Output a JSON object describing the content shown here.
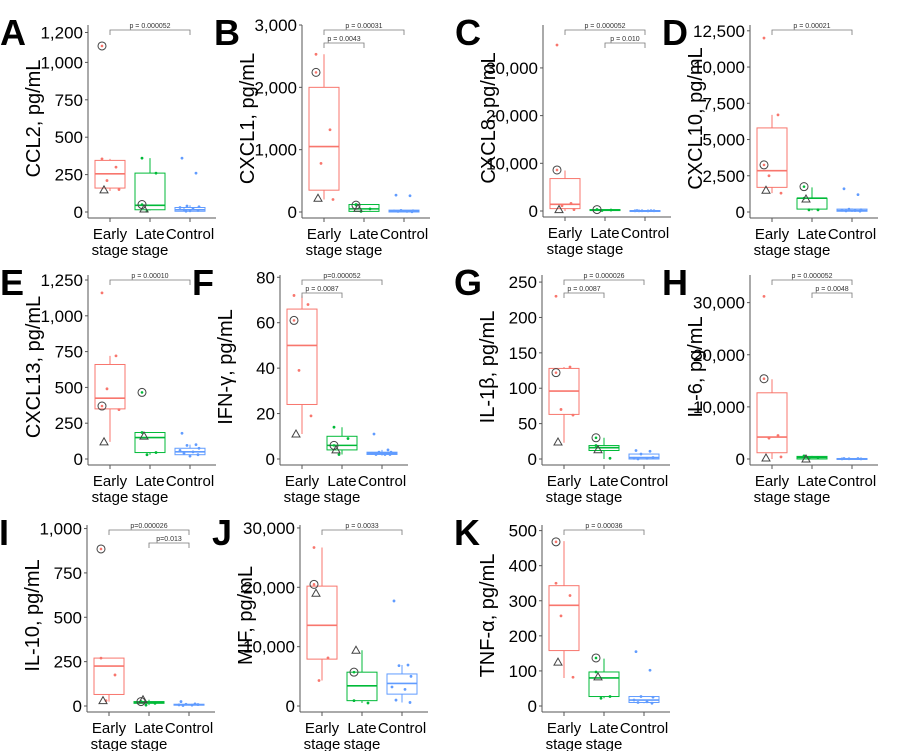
{
  "colors": {
    "early": "#f8766d",
    "late": "#00ba38",
    "control": "#619cff",
    "axis": "#555555",
    "bracket": "#777777"
  },
  "categories": [
    [
      "Early",
      "stage"
    ],
    [
      "Late",
      "stage"
    ],
    [
      "Control",
      ""
    ]
  ],
  "chart_data": [
    {
      "type": "box",
      "panel": "A",
      "ylabel": "CCL2, pg/mL",
      "ylim": [
        0,
        1250
      ],
      "ticks": [
        0,
        250,
        500,
        750,
        1000,
        1200
      ],
      "tick_labels": [
        "0",
        "250",
        "500",
        "750",
        "1,000",
        "1,200"
      ],
      "groups": [
        {
          "q1": 160,
          "median": 255,
          "q3": 345,
          "lo": 140,
          "hi": 355,
          "points": [
            355,
            300,
            210,
            150
          ],
          "circle": 1110,
          "triangle": 148
        },
        {
          "q1": 15,
          "median": 45,
          "q3": 260,
          "lo": 10,
          "hi": 360,
          "points": [
            360,
            260,
            5
          ],
          "circle": 50,
          "triangle": 20
        },
        {
          "q1": 5,
          "median": 15,
          "q3": 30,
          "lo": 0,
          "hi": 45,
          "points": [
            360,
            260,
            40,
            35,
            30,
            20,
            15,
            10,
            8,
            5
          ]
        }
      ],
      "pvalues": [
        {
          "from": 0,
          "to": 2,
          "label": "p = 0.000052"
        }
      ]
    },
    {
      "type": "box",
      "panel": "B",
      "ylabel": "CXCL1, pg/mL",
      "ylim": [
        0,
        3000
      ],
      "ticks": [
        0,
        1000,
        2000,
        3000
      ],
      "tick_labels": [
        "0",
        "1,000",
        "2,000",
        "3,000"
      ],
      "groups": [
        {
          "q1": 350,
          "median": 1050,
          "q3": 2000,
          "lo": 200,
          "hi": 2530,
          "points": [
            2530,
            1320,
            780,
            200
          ],
          "circle": 2240,
          "triangle": 220
        },
        {
          "q1": 10,
          "median": 50,
          "q3": 120,
          "lo": 0,
          "hi": 120,
          "points": [
            120,
            50,
            10
          ],
          "circle": 110,
          "triangle": 60
        },
        {
          "q1": 0,
          "median": 15,
          "q3": 30,
          "lo": 0,
          "hi": 30,
          "points": [
            270,
            260,
            25,
            20,
            15,
            10,
            10,
            5
          ]
        }
      ],
      "pvalues": [
        {
          "from": 0,
          "to": 2,
          "label": "p = 0.00031"
        },
        {
          "from": 0,
          "to": 1,
          "label": "p = 0.0043"
        }
      ]
    },
    {
      "type": "box",
      "panel": "C",
      "ylabel": "CXCL8, pg/mL",
      "ylim": [
        0,
        39000
      ],
      "ticks": [
        0,
        10000,
        20000,
        30000
      ],
      "tick_labels": [
        "0",
        "10,000",
        "20,000",
        "30,000"
      ],
      "groups": [
        {
          "q1": 500,
          "median": 1400,
          "q3": 6800,
          "lo": 0,
          "hi": 8500,
          "points": [
            34800,
            1600,
            1100,
            300
          ],
          "circle": 8600,
          "triangle": 300
        },
        {
          "q1": 100,
          "median": 200,
          "q3": 300,
          "lo": 50,
          "hi": 350,
          "points": [
            300,
            200,
            100
          ],
          "circle": 300
        },
        {
          "q1": 0,
          "median": 50,
          "q3": 100,
          "lo": 0,
          "hi": 150,
          "points": [
            100,
            80,
            60,
            50,
            40,
            30,
            20
          ]
        }
      ],
      "pvalues": [
        {
          "from": 0,
          "to": 2,
          "label": "p = 0.000052"
        },
        {
          "from": 1,
          "to": 2,
          "label": "p = 0.010"
        }
      ]
    },
    {
      "type": "box",
      "panel": "D",
      "ylabel": "CXCL10, pg/mL",
      "ylim": [
        0,
        12900
      ],
      "ticks": [
        0,
        2500,
        5000,
        7500,
        10000,
        12500
      ],
      "tick_labels": [
        "0",
        "2,500",
        "5,000",
        "7,500",
        "10,000",
        "12,500"
      ],
      "groups": [
        {
          "q1": 1700,
          "median": 2850,
          "q3": 5800,
          "lo": 1300,
          "hi": 6700,
          "points": [
            12000,
            6700,
            2500,
            1300
          ],
          "circle": 3250,
          "triangle": 1500
        },
        {
          "q1": 200,
          "median": 950,
          "q3": 950,
          "lo": 100,
          "hi": 1700,
          "points": [
            950,
            150,
            150
          ],
          "circle": 1750,
          "triangle": 900
        },
        {
          "q1": 50,
          "median": 100,
          "q3": 200,
          "lo": 0,
          "hi": 250,
          "points": [
            1600,
            1200,
            200,
            150,
            120,
            100,
            80,
            60
          ]
        }
      ],
      "pvalues": [
        {
          "from": 0,
          "to": 2,
          "label": "p = 0.00021"
        }
      ]
    },
    {
      "type": "box",
      "panel": "E",
      "ylabel": "CXCL13, pg/mL",
      "ylim": [
        0,
        1285
      ],
      "ticks": [
        0,
        250,
        500,
        750,
        1000,
        1250
      ],
      "tick_labels": [
        "0",
        "250",
        "500",
        "750",
        "1,000",
        "1,250"
      ],
      "groups": [
        {
          "q1": 350,
          "median": 425,
          "q3": 660,
          "lo": 120,
          "hi": 720,
          "points": [
            1160,
            720,
            490,
            345
          ],
          "circle": 370,
          "triangle": 120
        },
        {
          "q1": 45,
          "median": 150,
          "q3": 185,
          "lo": 30,
          "hi": 185,
          "points": [
            185,
            45,
            30
          ],
          "circle": 465,
          "triangle": 160
        },
        {
          "q1": 30,
          "median": 50,
          "q3": 75,
          "lo": 15,
          "hi": 100,
          "points": [
            180,
            100,
            95,
            75,
            60,
            50,
            40,
            30,
            20
          ]
        }
      ],
      "pvalues": [
        {
          "from": 0,
          "to": 2,
          "label": "p = 0.00010"
        }
      ]
    },
    {
      "type": "box",
      "panel": "F",
      "ylabel": "IFN-γ, pg/mL",
      "ylim": [
        0,
        81
      ],
      "ticks": [
        0,
        20,
        40,
        60,
        80
      ],
      "tick_labels": [
        "0",
        "20",
        "40",
        "60",
        "80"
      ],
      "groups": [
        {
          "q1": 24,
          "median": 50,
          "q3": 66,
          "lo": 11,
          "hi": 72,
          "points": [
            72,
            68,
            39,
            19
          ],
          "circle": 61,
          "triangle": 11
        },
        {
          "q1": 4,
          "median": 6,
          "q3": 10,
          "lo": 2,
          "hi": 14,
          "points": [
            14,
            9,
            2
          ],
          "circle": 6,
          "triangle": 4
        },
        {
          "q1": 2,
          "median": 2.5,
          "q3": 3,
          "lo": 1.5,
          "hi": 4,
          "points": [
            11,
            4,
            3,
            3,
            2.5,
            2,
            2,
            2
          ]
        }
      ],
      "pvalues": [
        {
          "from": 0,
          "to": 2,
          "label": "p=0.000052"
        },
        {
          "from": 0,
          "to": 1,
          "label": "p = 0.0087"
        }
      ]
    },
    {
      "type": "box",
      "panel": "G",
      "ylabel": "IL-1β, pg/mL",
      "ylim": [
        0,
        260
      ],
      "ticks": [
        0,
        50,
        100,
        150,
        200,
        250
      ],
      "tick_labels": [
        "0",
        "50",
        "100",
        "150",
        "200",
        "250"
      ],
      "groups": [
        {
          "q1": 63,
          "median": 96,
          "q3": 128,
          "lo": 23,
          "hi": 130,
          "points": [
            230,
            130,
            70,
            62
          ],
          "circle": 122,
          "triangle": 24
        },
        {
          "q1": 12,
          "median": 16,
          "q3": 19,
          "lo": 0,
          "hi": 30,
          "points": [
            19,
            1
          ],
          "circle": 30,
          "triangle": 13
        },
        {
          "q1": 0,
          "median": 2,
          "q3": 7,
          "lo": 0,
          "hi": 7,
          "points": [
            12,
            11,
            7,
            2,
            1,
            1,
            0
          ]
        }
      ],
      "pvalues": [
        {
          "from": 0,
          "to": 2,
          "label": "p = 0.000026"
        },
        {
          "from": 0,
          "to": 1,
          "label": "p = 0.0087"
        }
      ]
    },
    {
      "type": "box",
      "panel": "H",
      "ylabel": "IL-6, pg/mL",
      "ylim": [
        0,
        35300
      ],
      "ticks": [
        0,
        10000,
        20000,
        30000
      ],
      "tick_labels": [
        "0",
        "10,000",
        "20,000",
        "30,000"
      ],
      "groups": [
        {
          "q1": 1200,
          "median": 4200,
          "q3": 12700,
          "lo": 0,
          "hi": 15300,
          "points": [
            31200,
            4500,
            4000,
            400
          ],
          "circle": 15400,
          "triangle": 200
        },
        {
          "q1": 0,
          "median": 300,
          "q3": 500,
          "lo": 0,
          "hi": 600,
          "points": [
            600,
            300,
            100
          ],
          "triangle": 0
        },
        {
          "q1": 0,
          "median": 50,
          "q3": 100,
          "lo": 0,
          "hi": 100,
          "points": [
            100,
            80,
            50,
            30,
            20
          ]
        }
      ],
      "pvalues": [
        {
          "from": 0,
          "to": 2,
          "label": "p = 0.000052"
        },
        {
          "from": 1,
          "to": 2,
          "label": "p = 0.0048"
        }
      ]
    },
    {
      "type": "box",
      "panel": "I",
      "ylabel": "IL-10, pg/mL",
      "ylim": [
        0,
        1020
      ],
      "ticks": [
        0,
        250,
        500,
        750,
        1000
      ],
      "tick_labels": [
        "0",
        "250",
        "500",
        "750",
        "1,000"
      ],
      "groups": [
        {
          "q1": 65,
          "median": 225,
          "q3": 270,
          "lo": 25,
          "hi": 270,
          "points": [
            270,
            175,
            30
          ],
          "circle": 885,
          "triangle": 30
        },
        {
          "q1": 15,
          "median": 20,
          "q3": 25,
          "lo": 5,
          "hi": 35,
          "points": [
            25,
            15,
            5
          ],
          "circle": 25,
          "triangle": 35
        },
        {
          "q1": 5,
          "median": 7,
          "q3": 10,
          "lo": 2,
          "hi": 12,
          "points": [
            25,
            12,
            10,
            8,
            6,
            5,
            3
          ]
        }
      ],
      "pvalues": [
        {
          "from": 0,
          "to": 2,
          "label": "p=0.000026"
        },
        {
          "from": 1,
          "to": 2,
          "label": "p=0.013"
        }
      ]
    },
    {
      "type": "box",
      "panel": "J",
      "ylabel": "MIF, pg/mL",
      "ylim": [
        0,
        30500
      ],
      "ticks": [
        0,
        10000,
        20000,
        30000
      ],
      "tick_labels": [
        "0",
        "10,000",
        "20,000",
        "30,000"
      ],
      "groups": [
        {
          "q1": 7900,
          "median": 13600,
          "q3": 20200,
          "lo": 4300,
          "hi": 26700,
          "points": [
            26700,
            8100,
            4300
          ],
          "circle": 20500,
          "triangle": 19000
        },
        {
          "q1": 900,
          "median": 3400,
          "q3": 5700,
          "lo": 500,
          "hi": 9400,
          "points": [
            900,
            500
          ],
          "circle": 5700,
          "triangle": 9400
        },
        {
          "q1": 2000,
          "median": 3800,
          "q3": 5400,
          "lo": 600,
          "hi": 6900,
          "points": [
            17700,
            6900,
            6800,
            5000,
            3200,
            2800,
            1000,
            600
          ]
        }
      ],
      "pvalues": [
        {
          "from": 0,
          "to": 2,
          "label": "p = 0.0033"
        }
      ]
    },
    {
      "type": "box",
      "panel": "K",
      "ylabel": "TNF-α, pg/mL",
      "ylim": [
        0,
        516
      ],
      "ticks": [
        0,
        100,
        200,
        300,
        400,
        500
      ],
      "tick_labels": [
        "0",
        "100",
        "200",
        "300",
        "400",
        "500"
      ],
      "groups": [
        {
          "q1": 158,
          "median": 287,
          "q3": 343,
          "lo": 80,
          "hi": 470,
          "points": [
            350,
            315,
            257,
            82
          ],
          "circle": 468,
          "triangle": 125
        },
        {
          "q1": 27,
          "median": 80,
          "q3": 97,
          "lo": 22,
          "hi": 135,
          "points": [
            97,
            27,
            22
          ],
          "circle": 137,
          "triangle": 83
        },
        {
          "q1": 10,
          "median": 17,
          "q3": 27,
          "lo": 8,
          "hi": 27,
          "points": [
            155,
            102,
            27,
            25,
            17,
            12,
            10,
            8
          ]
        }
      ],
      "pvalues": [
        {
          "from": 0,
          "to": 2,
          "label": "p = 0.00036"
        }
      ]
    }
  ]
}
